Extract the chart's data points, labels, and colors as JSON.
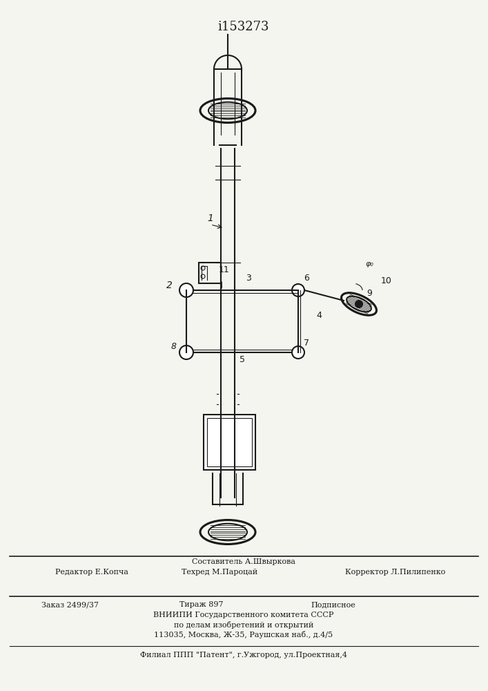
{
  "title": "i153273",
  "bg_color": "#f5f5f0",
  "line_color": "#1a1a1a",
  "footer_line1_left": "Редактор Е.Копча",
  "footer_line1_center": "Составитель А.Швыркова\nТехред М.Пароцай",
  "footer_line1_right": "Корректор Л.Пилипенко",
  "footer_line2": "Заказ 2499/37        Тираж 897                  Подписное",
  "footer_line3": "ВНИИПИ Государственного комитета СССР",
  "footer_line4": "по делам изобретений и открытий",
  "footer_line5": "113035, Москва, Ж-35, Раушская наб., д.4/5",
  "footer_line6": "Филиал ППП \"Патент\", г.Ужгород, ул.Проектная,4"
}
